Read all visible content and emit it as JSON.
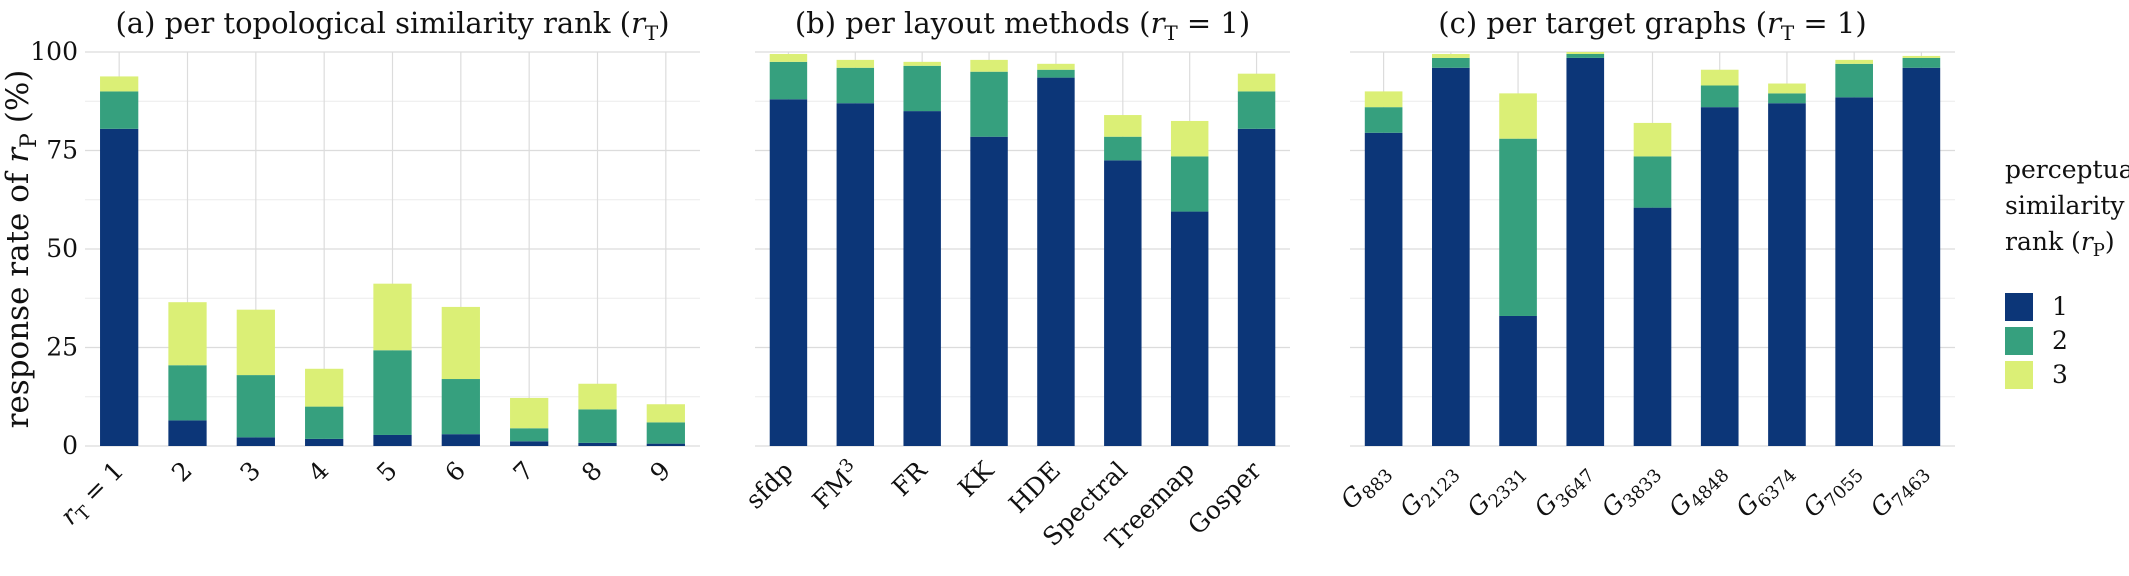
{
  "figure": {
    "ylabel": "response rate of r_P (%)",
    "ylim": [
      0,
      100
    ],
    "yticks": [
      0,
      25,
      50,
      75,
      100
    ],
    "grid": true
  },
  "legend": {
    "title_lines": [
      "perceptual",
      "similarity",
      "rank (r_P)"
    ],
    "placement": "right",
    "entries": [
      {
        "label": "1",
        "color": "#0c3678"
      },
      {
        "label": "2",
        "color": "#36a07e"
      },
      {
        "label": "3",
        "color": "#dbef76"
      }
    ]
  },
  "chart_data": [
    {
      "type": "bar",
      "stacked": true,
      "title": "(a) per topological similarity rank (r_T)",
      "categories": [
        "r_T = 1",
        "2",
        "3",
        "4",
        "5",
        "6",
        "7",
        "8",
        "9"
      ],
      "series": [
        {
          "name": "1",
          "values": [
            80.5,
            6.5,
            2.2,
            1.8,
            2.8,
            3.0,
            1.2,
            0.8,
            0.6
          ]
        },
        {
          "name": "2",
          "values": [
            9.5,
            14.0,
            15.8,
            8.2,
            21.5,
            14.0,
            3.3,
            8.5,
            5.4
          ]
        },
        {
          "name": "3",
          "values": [
            3.8,
            16.0,
            16.6,
            9.6,
            16.9,
            18.3,
            7.7,
            6.5,
            4.6
          ]
        }
      ],
      "ylim": [
        0,
        100
      ]
    },
    {
      "type": "bar",
      "stacked": true,
      "title": "(b) per layout methods (r_T = 1)",
      "categories": [
        "sfdp",
        "FM³",
        "FR",
        "KK",
        "HDE",
        "Spectral",
        "Treemap",
        "Gosper"
      ],
      "series": [
        {
          "name": "1",
          "values": [
            88.0,
            87.0,
            85.0,
            78.5,
            93.5,
            72.5,
            59.5,
            80.5
          ]
        },
        {
          "name": "2",
          "values": [
            9.5,
            9.0,
            11.5,
            16.5,
            2.0,
            6.0,
            14.0,
            9.5
          ]
        },
        {
          "name": "3",
          "values": [
            2.0,
            2.0,
            1.0,
            3.0,
            1.5,
            5.5,
            9.0,
            4.5
          ]
        }
      ],
      "ylim": [
        0,
        100
      ]
    },
    {
      "type": "bar",
      "stacked": true,
      "title": "(c) per target graphs (r_T = 1)",
      "categories": [
        "G883",
        "G2123",
        "G2331",
        "G3647",
        "G3833",
        "G4848",
        "G6374",
        "G7055",
        "G7463"
      ],
      "series": [
        {
          "name": "1",
          "values": [
            79.5,
            96.0,
            33.0,
            98.5,
            60.5,
            86.0,
            87.0,
            88.5,
            96.0
          ]
        },
        {
          "name": "2",
          "values": [
            6.5,
            2.5,
            45.0,
            1.0,
            13.0,
            5.5,
            2.5,
            8.5,
            2.5
          ]
        },
        {
          "name": "3",
          "values": [
            4.0,
            1.0,
            11.5,
            0.5,
            8.5,
            4.0,
            2.5,
            1.0,
            0.5
          ]
        }
      ],
      "ylim": [
        0,
        100
      ]
    }
  ]
}
